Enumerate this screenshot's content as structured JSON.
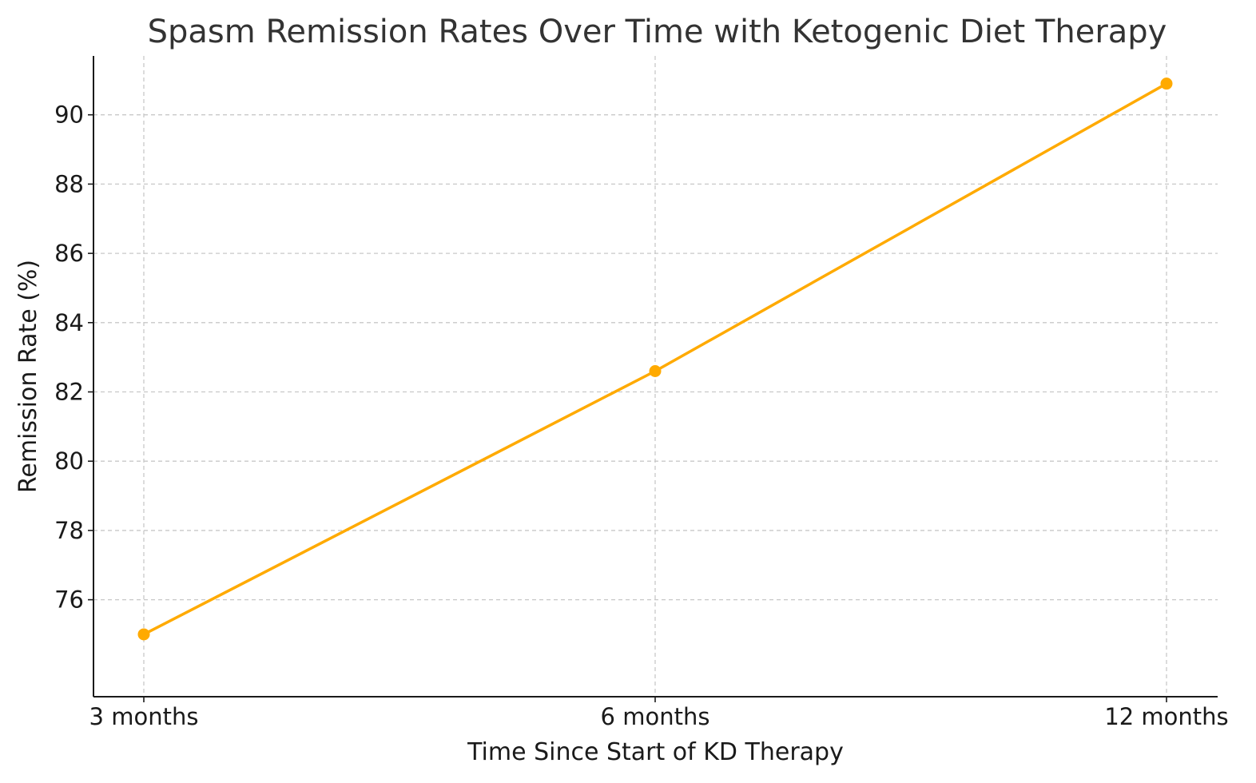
{
  "chart_data": {
    "type": "line",
    "title": "Spasm Remission Rates Over Time with Ketogenic Diet Therapy",
    "xlabel": "Time Since Start of KD Therapy",
    "ylabel": "Remission Rate (%)",
    "categories": [
      "3 months",
      "6 months",
      "12 months"
    ],
    "series": [
      {
        "values": [
          75.0,
          82.6,
          90.9
        ],
        "color": "#ffaa00"
      }
    ],
    "ylim": [
      73.2,
      91.7
    ],
    "yticks": [
      76,
      78,
      80,
      82,
      84,
      86,
      88,
      90
    ],
    "ytick_labels": [
      "76",
      "78",
      "80",
      "82",
      "84",
      "86",
      "88",
      "90"
    ],
    "grid": true,
    "legend": "none"
  }
}
